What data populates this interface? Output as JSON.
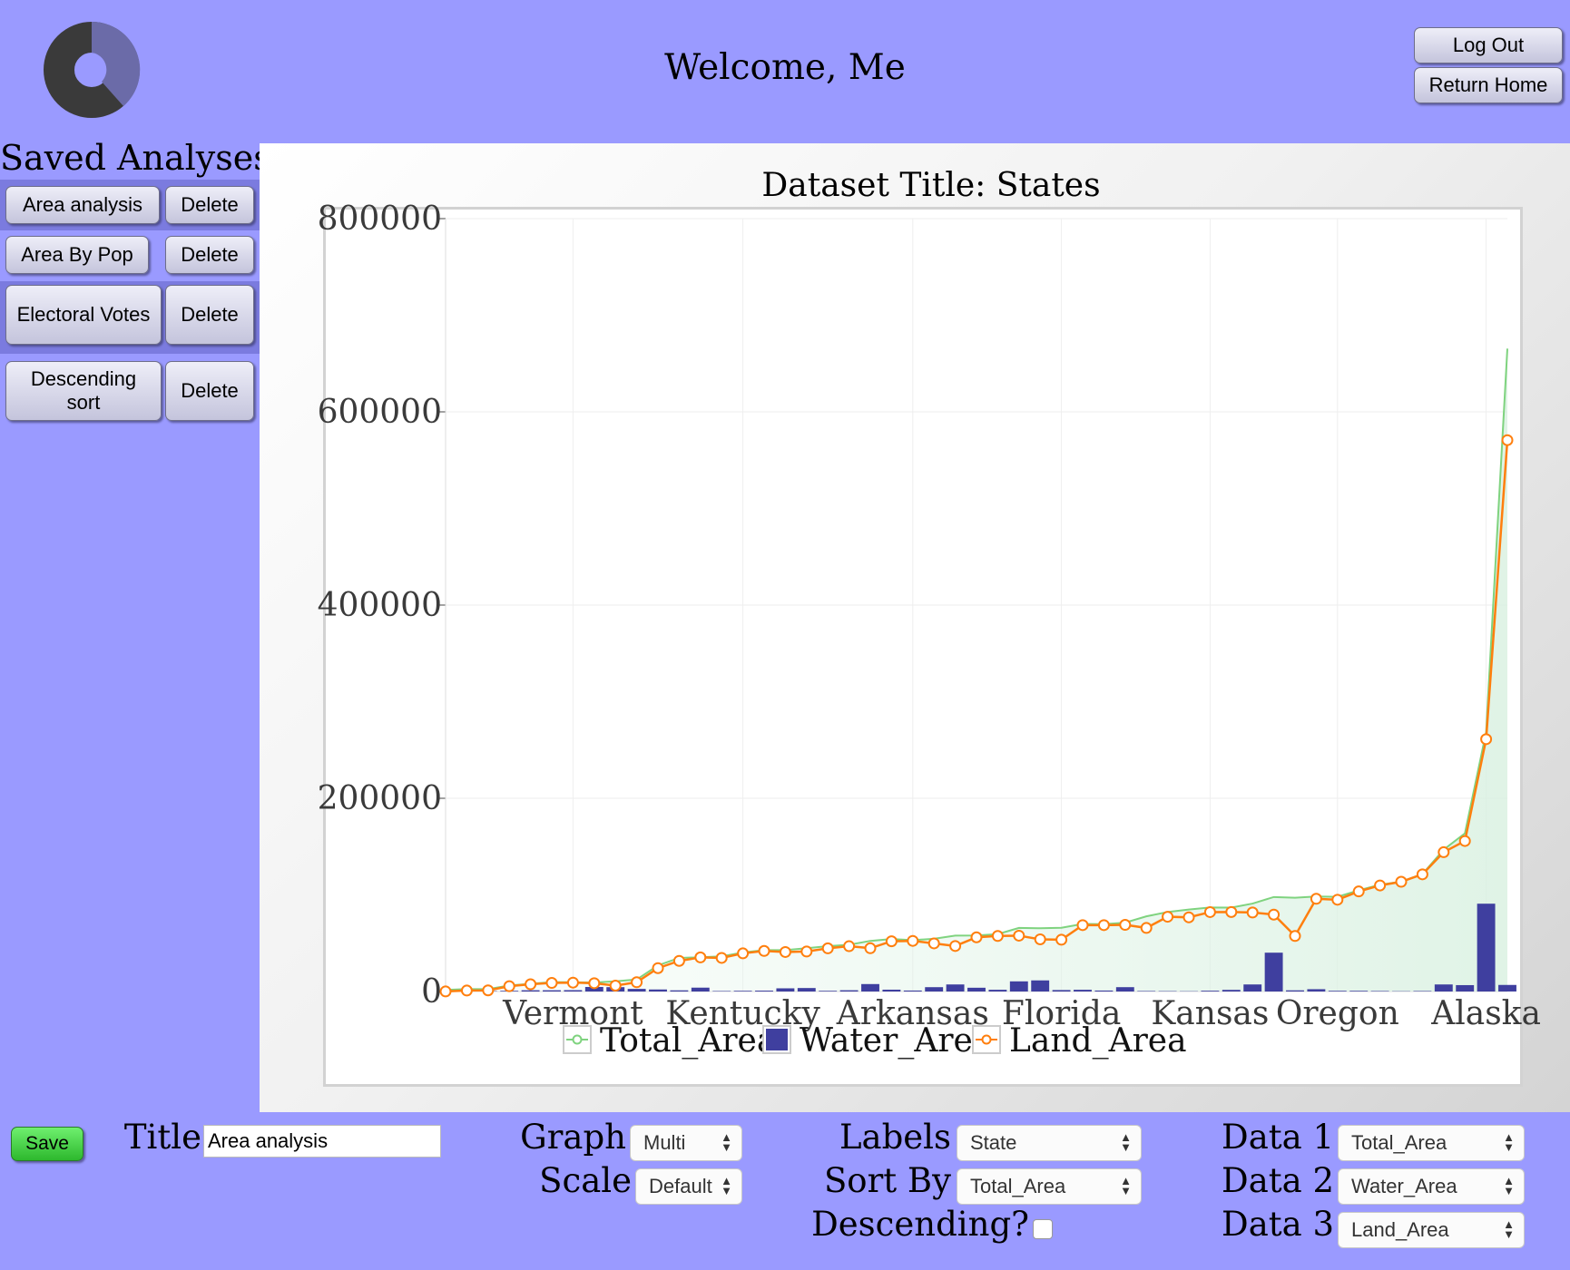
{
  "header": {
    "welcome": "Welcome, Me",
    "logout_label": "Log Out",
    "home_label": "Return Home",
    "logo_icon": "donut-chart-logo"
  },
  "sidebar": {
    "title": "Saved Analyses",
    "delete_label": "Delete",
    "items": [
      {
        "label": "Area analysis"
      },
      {
        "label": "Area By Pop"
      },
      {
        "label": "Electoral Votes"
      },
      {
        "label": "Descending sort"
      }
    ]
  },
  "chart": {
    "title": "Dataset Title: States"
  },
  "chart_data": {
    "type": "line",
    "title": "Dataset Title: States",
    "y_ticks": [
      "0",
      "200000",
      "400000",
      "600000",
      "800000"
    ],
    "ylim": [
      0,
      800000
    ],
    "grid": true,
    "legend_placement": "bottom",
    "x_tick_labels": [
      {
        "label": "Vermont",
        "index": 6
      },
      {
        "label": "Kentucky",
        "index": 14
      },
      {
        "label": "Arkansas",
        "index": 22
      },
      {
        "label": "Florida",
        "index": 29
      },
      {
        "label": "Kansas",
        "index": 36
      },
      {
        "label": "Oregon",
        "index": 42
      },
      {
        "label": "Alaska",
        "index": 49
      }
    ],
    "colors": {
      "Total_Area": "#7fd37f",
      "Water_Area": "#3f3f9f",
      "Land_Area": "#ff7f0e"
    },
    "series": [
      {
        "name": "Total_Area",
        "kind": "line",
        "values": [
          1600,
          2500,
          2500,
          6200,
          8000,
          9800,
          9600,
          9300,
          10600,
          12400,
          27000,
          34800,
          35400,
          36400,
          40400,
          42800,
          42800,
          44800,
          46900,
          48400,
          52400,
          54300,
          53200,
          54600,
          57900,
          58000,
          59400,
          65800,
          65500,
          66000,
          69900,
          69700,
          71300,
          77800,
          82300,
          84900,
          87000,
          86900,
          91000,
          97800,
          97100,
          98400,
          98000,
          104700,
          110600,
          113700,
          121600,
          146900,
          163700,
          268600,
          665400
        ]
      },
      {
        "name": "Water_Area",
        "kind": "bar",
        "values": [
          50,
          400,
          400,
          700,
          1300,
          1300,
          1400,
          4700,
          4500,
          2700,
          2100,
          1200,
          4000,
          500,
          700,
          900,
          3300,
          3600,
          700,
          1300,
          7700,
          1900,
          1000,
          4500,
          7300,
          3900,
          1800,
          10500,
          11500,
          1500,
          1800,
          1000,
          4500,
          500,
          400,
          300,
          800,
          1700,
          7300,
          40200,
          1200,
          2400,
          700,
          700,
          500,
          300,
          500,
          7300,
          6600,
          90900,
          6800
        ]
      },
      {
        "name": "Land_Area",
        "kind": "line",
        "values": [
          60,
          1000,
          1200,
          5500,
          7500,
          8900,
          9200,
          8600,
          6100,
          9600,
          24200,
          31700,
          35300,
          34800,
          39500,
          42000,
          40900,
          41400,
          44700,
          46900,
          44800,
          52000,
          52400,
          49800,
          47100,
          56100,
          57500,
          57800,
          54000,
          53600,
          68700,
          68700,
          69000,
          65800,
          77400,
          76800,
          82200,
          82300,
          81800,
          79600,
          57500,
          96000,
          95000,
          103600,
          109800,
          113600,
          121300,
          144200,
          155800,
          261200,
          570700
        ]
      }
    ]
  },
  "controls": {
    "save_label": "Save",
    "title_label": "Title",
    "title_value": "Area analysis",
    "graph_label": "Graph",
    "graph_value": "Multi",
    "scale_label": "Scale",
    "scale_value": "Default",
    "labels_label": "Labels",
    "labels_value": "State",
    "sortby_label": "Sort By",
    "sortby_value": "Total_Area",
    "descending_label": "Descending?",
    "data1_label": "Data 1",
    "data1_value": "Total_Area",
    "data2_label": "Data 2",
    "data2_value": "Water_Area",
    "data3_label": "Data 3",
    "data3_value": "Land_Area"
  }
}
